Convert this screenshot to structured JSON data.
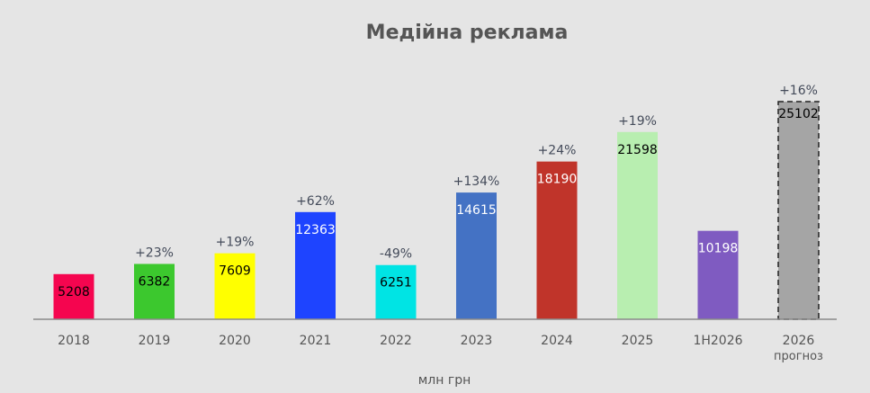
{
  "chart_data": {
    "type": "bar",
    "title": "Медійна реклама",
    "xlabel": "млн грн",
    "ylabel": "",
    "ylim": [
      0,
      26500
    ],
    "grid": false,
    "legend": "none",
    "categories": [
      "2018",
      "2019",
      "2020",
      "2021",
      "2022",
      "2023",
      "2024",
      "2025",
      "1H2026",
      "2026"
    ],
    "category_sublabels": [
      "",
      "",
      "",
      "",
      "",
      "",
      "",
      "",
      "",
      "прогноз"
    ],
    "values": [
      5208,
      6382,
      7609,
      12363,
      6251,
      14615,
      18190,
      21598,
      10198,
      25102
    ],
    "value_labels": [
      "5208",
      "6382",
      "7609",
      "12363",
      "6251",
      "14615",
      "18190",
      "21598",
      "10198",
      "25102"
    ],
    "growth_labels": [
      "",
      "+23%",
      "+19%",
      "+62%",
      "-49%",
      "+134%",
      "+24%",
      "+19%",
      "",
      "+16%"
    ],
    "colors": [
      "#f5054f",
      "#3cc82e",
      "#ffff00",
      "#1e44ff",
      "#00e4e4",
      "#4472c4",
      "#c0342a",
      "#b8eeb0",
      "#7f5bc1",
      "#a5a5a5"
    ],
    "value_label_colors": [
      "#000000",
      "#000000",
      "#000000",
      "#ffffff",
      "#000000",
      "#ffffff",
      "#ffffff",
      "#000000",
      "#ffffff",
      "#000000"
    ],
    "forecast": [
      false,
      false,
      false,
      false,
      false,
      false,
      false,
      false,
      false,
      true
    ]
  }
}
